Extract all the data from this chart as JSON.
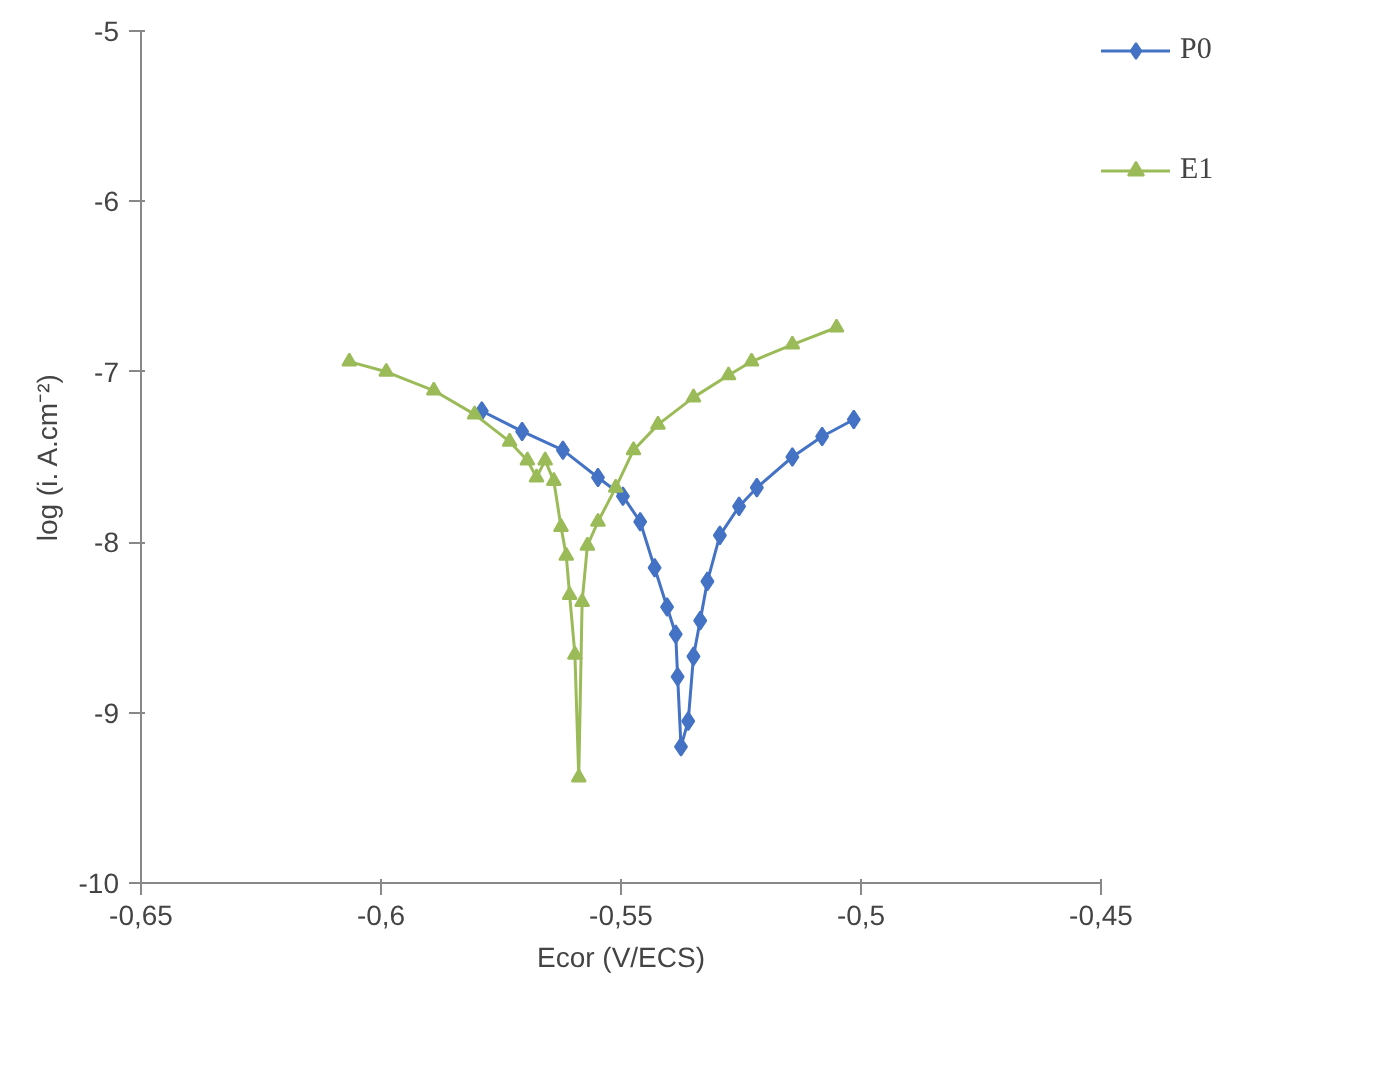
{
  "chart_data": {
    "type": "line",
    "xlabel": "Ecor (V/ECS)",
    "ylabel": "log (i. A.cm⁻²)",
    "xlim": [
      -0.65,
      -0.45
    ],
    "ylim": [
      -10,
      -5
    ],
    "xticks": [
      {
        "value": -0.65,
        "label": "-0,65"
      },
      {
        "value": -0.6,
        "label": "-0,6"
      },
      {
        "value": -0.55,
        "label": "-0,55"
      },
      {
        "value": -0.5,
        "label": "-0,5"
      },
      {
        "value": -0.45,
        "label": "-0,45"
      }
    ],
    "yticks": [
      -10,
      -9,
      -8,
      -7,
      -6,
      -5
    ],
    "grid": false,
    "legend": "right",
    "series": [
      {
        "name": "P0",
        "color": "#4472c4",
        "marker": "diamond",
        "x": [
          -0.579,
          -0.5706,
          -0.5621,
          -0.5548,
          -0.5496,
          -0.546,
          -0.543,
          -0.5404,
          -0.5386,
          -0.5382,
          -0.5375,
          -0.536,
          -0.5349,
          -0.5335,
          -0.532,
          -0.5294,
          -0.5254,
          -0.5217,
          -0.5143,
          -0.5081,
          -0.5015
        ],
        "values": [
          -7.23,
          -7.35,
          -7.46,
          -7.62,
          -7.73,
          -7.88,
          -8.15,
          -8.38,
          -8.54,
          -8.79,
          -9.2,
          -9.05,
          -8.67,
          -8.46,
          -8.23,
          -7.96,
          -7.79,
          -7.68,
          -7.5,
          -7.38,
          -7.28
        ]
      },
      {
        "name": "E1",
        "color": "#9bbb59",
        "marker": "triangle",
        "x": [
          -0.6066,
          -0.5989,
          -0.589,
          -0.5805,
          -0.5732,
          -0.5695,
          -0.5676,
          -0.5658,
          -0.564,
          -0.5625,
          -0.5614,
          -0.5607,
          -0.5596,
          -0.5588,
          -0.5581,
          -0.557,
          -0.5548,
          -0.5511,
          -0.5474,
          -0.5423,
          -0.5349,
          -0.5276,
          -0.5228,
          -0.5143,
          -0.5051
        ],
        "values": [
          -6.94,
          -7.0,
          -7.11,
          -7.25,
          -7.41,
          -7.52,
          -7.62,
          -7.52,
          -7.64,
          -7.91,
          -8.08,
          -8.31,
          -8.66,
          -9.38,
          -8.35,
          -8.02,
          -7.88,
          -7.68,
          -7.46,
          -7.31,
          -7.15,
          -7.02,
          -6.94,
          -6.84,
          -6.74
        ]
      }
    ]
  }
}
